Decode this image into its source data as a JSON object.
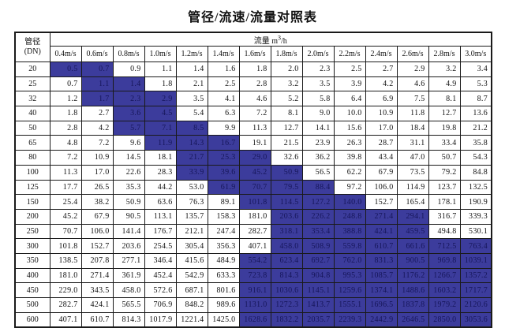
{
  "page": {
    "title": "管径/流速/流量对照表"
  },
  "colors": {
    "highlight_bg": "#3c3c9c",
    "highlight_text": "#16165a",
    "border": "#1a1a1a",
    "text": "#111111"
  },
  "table": {
    "corner_header": {
      "line1": "管径",
      "line2": "(DN)"
    },
    "flow_header": {
      "prefix": "流量 m",
      "sup": "3",
      "suffix": "/h"
    },
    "velocity_headers": [
      "0.4m/s",
      "0.6m/s",
      "0.8m/s",
      "1.0m/s",
      "1.2m/s",
      "1.4m/s",
      "1.6m/s",
      "1.8m/s",
      "2.0m/s",
      "2.2m/s",
      "2.4m/s",
      "2.6m/s",
      "2.8m/s",
      "3.0m/s"
    ],
    "rows": [
      {
        "dn": "20",
        "highlight": [
          0,
          1
        ],
        "values": [
          "0.5",
          "0.7",
          "0.9",
          "1.1",
          "1.4",
          "1.6",
          "1.8",
          "2.0",
          "2.3",
          "2.5",
          "2.7",
          "2.9",
          "3.2",
          "3.4"
        ]
      },
      {
        "dn": "25",
        "highlight": [
          1,
          2
        ],
        "values": [
          "0.7",
          "1.1",
          "1.4",
          "1.8",
          "2.1",
          "2.5",
          "2.8",
          "3.2",
          "3.5",
          "3.9",
          "4.2",
          "4.6",
          "4.9",
          "5.3"
        ]
      },
      {
        "dn": "32",
        "highlight": [
          1,
          3
        ],
        "values": [
          "1.2",
          "1.7",
          "2.3",
          "2.9",
          "3.5",
          "4.1",
          "4.6",
          "5.2",
          "5.8",
          "6.4",
          "6.9",
          "7.5",
          "8.1",
          "8.7"
        ]
      },
      {
        "dn": "40",
        "highlight": [
          2,
          3
        ],
        "values": [
          "1.8",
          "2.7",
          "3.6",
          "4.5",
          "5.4",
          "6.3",
          "7.2",
          "8.1",
          "9.0",
          "10.0",
          "10.9",
          "11.8",
          "12.7",
          "13.6"
        ]
      },
      {
        "dn": "50",
        "highlight": [
          2,
          4
        ],
        "values": [
          "2.8",
          "4.2",
          "5.7",
          "7.1",
          "8.5",
          "9.9",
          "11.3",
          "12.7",
          "14.1",
          "15.6",
          "17.0",
          "18.4",
          "19.8",
          "21.2"
        ]
      },
      {
        "dn": "65",
        "highlight": [
          3,
          5
        ],
        "values": [
          "4.8",
          "7.2",
          "9.6",
          "11.9",
          "14.3",
          "16.7",
          "19.1",
          "21.5",
          "23.9",
          "26.3",
          "28.7",
          "31.1",
          "33.4",
          "35.8"
        ]
      },
      {
        "dn": "80",
        "highlight": [
          4,
          6
        ],
        "values": [
          "7.2",
          "10.9",
          "14.5",
          "18.1",
          "21.7",
          "25.3",
          "29.0",
          "32.6",
          "36.2",
          "39.8",
          "43.4",
          "47.0",
          "50.7",
          "54.3"
        ]
      },
      {
        "dn": "100",
        "highlight": [
          4,
          7
        ],
        "values": [
          "11.3",
          "17.0",
          "22.6",
          "28.3",
          "33.9",
          "39.6",
          "45.2",
          "50.9",
          "56.5",
          "62.2",
          "67.9",
          "73.5",
          "79.2",
          "84.8"
        ]
      },
      {
        "dn": "125",
        "highlight": [
          5,
          8
        ],
        "values": [
          "17.7",
          "26.5",
          "35.3",
          "44.2",
          "53.0",
          "61.9",
          "70.7",
          "79.5",
          "88.4",
          "97.2",
          "106.0",
          "114.9",
          "123.7",
          "132.5"
        ]
      },
      {
        "dn": "150",
        "highlight": [
          6,
          9
        ],
        "values": [
          "25.4",
          "38.2",
          "50.9",
          "63.6",
          "76.3",
          "89.1",
          "101.8",
          "114.5",
          "127.2",
          "140.0",
          "152.7",
          "165.4",
          "178.1",
          "190.9"
        ]
      },
      {
        "dn": "200",
        "highlight": [
          7,
          11
        ],
        "values": [
          "45.2",
          "67.9",
          "90.5",
          "113.1",
          "135.7",
          "158.3",
          "181.0",
          "203.6",
          "226.2",
          "248.8",
          "271.4",
          "294.1",
          "316.7",
          "339.3"
        ]
      },
      {
        "dn": "250",
        "highlight": [
          7,
          11
        ],
        "values": [
          "70.7",
          "106.0",
          "141.4",
          "176.7",
          "212.1",
          "247.4",
          "282.7",
          "318.1",
          "353.4",
          "388.8",
          "424.1",
          "459.5",
          "494.8",
          "530.1"
        ]
      },
      {
        "dn": "300",
        "highlight": [
          7,
          13
        ],
        "values": [
          "101.8",
          "152.7",
          "203.6",
          "254.5",
          "305.4",
          "356.3",
          "407.1",
          "458.0",
          "508.9",
          "559.8",
          "610.7",
          "661.6",
          "712.5",
          "763.4"
        ]
      },
      {
        "dn": "350",
        "highlight": [
          6,
          13
        ],
        "values": [
          "138.5",
          "207.8",
          "277.1",
          "346.4",
          "415.6",
          "484.9",
          "554.2",
          "623.4",
          "692.7",
          "762.0",
          "831.3",
          "900.5",
          "969.8",
          "1039.1"
        ]
      },
      {
        "dn": "400",
        "highlight": [
          6,
          13
        ],
        "values": [
          "181.0",
          "271.4",
          "361.9",
          "452.4",
          "542.9",
          "633.3",
          "723.8",
          "814.3",
          "904.8",
          "995.3",
          "1085.7",
          "1176.2",
          "1266.7",
          "1357.2"
        ]
      },
      {
        "dn": "450",
        "highlight": [
          6,
          13
        ],
        "values": [
          "229.0",
          "343.5",
          "458.0",
          "572.6",
          "687.1",
          "801.6",
          "916.1",
          "1030.6",
          "1145.1",
          "1259.6",
          "1374.1",
          "1488.6",
          "1603.2",
          "1717.7"
        ]
      },
      {
        "dn": "500",
        "highlight": [
          6,
          13
        ],
        "values": [
          "282.7",
          "424.1",
          "565.5",
          "706.9",
          "848.2",
          "989.6",
          "1131.0",
          "1272.3",
          "1413.7",
          "1555.1",
          "1696.5",
          "1837.8",
          "1979.2",
          "2120.6"
        ]
      },
      {
        "dn": "600",
        "highlight": [
          6,
          13
        ],
        "values": [
          "407.1",
          "610.7",
          "814.3",
          "1017.9",
          "1221.4",
          "1425.0",
          "1628.6",
          "1832.2",
          "2035.7",
          "2239.3",
          "2442.9",
          "2646.5",
          "2850.0",
          "3053.6"
        ]
      }
    ]
  }
}
